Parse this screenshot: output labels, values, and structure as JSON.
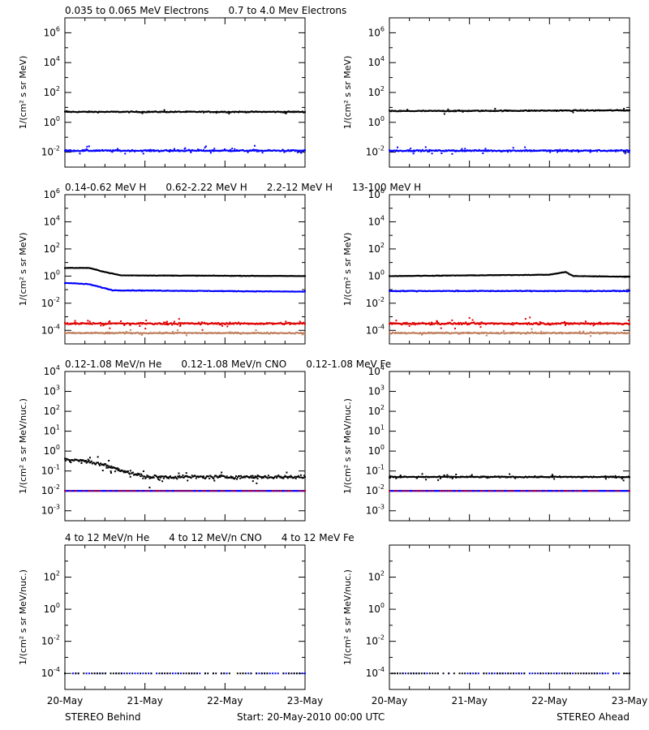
{
  "chart_data": [
    {
      "type": "scatter",
      "scale": "log",
      "ylim_exp": [
        -3,
        7
      ],
      "ytick_exp": [
        -2,
        0,
        2,
        4,
        6
      ],
      "ylabel": "1/(cm² s sr MeV)",
      "legend": [
        {
          "text": "0.035 to 0.065 MeV Electrons",
          "color": "#000000"
        },
        {
          "text": "0.7 to 4.0 Mev Electrons",
          "color": "#0000ff"
        }
      ],
      "panels": [
        {
          "name": "Behind",
          "series": [
            {
              "color": "#000000",
              "segments": [
                [
                  0,
                  0.7
                ],
                [
                  3,
                  0.7
                ]
              ],
              "noise": 0.06,
              "outliers": 8
            },
            {
              "color": "#0000ff",
              "segments": [
                [
                  0,
                  -1.9
                ],
                [
                  3,
                  -1.9
                ]
              ],
              "noise": 0.08,
              "outliers": 40
            }
          ]
        },
        {
          "name": "Ahead",
          "series": [
            {
              "color": "#000000",
              "segments": [
                [
                  0,
                  0.75
                ],
                [
                  3,
                  0.8
                ]
              ],
              "noise": 0.06,
              "outliers": 8
            },
            {
              "color": "#0000ff",
              "segments": [
                [
                  0,
                  -1.9
                ],
                [
                  3,
                  -1.9
                ]
              ],
              "noise": 0.08,
              "outliers": 40
            }
          ]
        }
      ]
    },
    {
      "type": "scatter",
      "scale": "log",
      "ylim_exp": [
        -5,
        6
      ],
      "ytick_exp": [
        -4,
        -2,
        0,
        2,
        4,
        6
      ],
      "ylabel": "1/(cm² s sr MeV)",
      "legend": [
        {
          "text": "0.14-0.62 MeV H",
          "color": "#000000"
        },
        {
          "text": "0.62-2.22 MeV H",
          "color": "#0000ff"
        },
        {
          "text": "2.2-12 MeV H",
          "color": "#c08060"
        },
        {
          "text": "13-100 MeV H",
          "color": "#e00000"
        }
      ],
      "panels": [
        {
          "name": "Behind",
          "series": [
            {
              "color": "#000000",
              "segments": [
                [
                  0,
                  0.6
                ],
                [
                  0.3,
                  0.6
                ],
                [
                  0.5,
                  0.3
                ],
                [
                  0.7,
                  0.05
                ],
                [
                  3,
                  0.0
                ]
              ],
              "noise": 0.03,
              "outliers": 0
            },
            {
              "color": "#0000ff",
              "segments": [
                [
                  0,
                  -0.5
                ],
                [
                  0.3,
                  -0.6
                ],
                [
                  0.6,
                  -1.05
                ],
                [
                  3,
                  -1.15
                ]
              ],
              "noise": 0.04,
              "outliers": 0
            },
            {
              "color": "#c08060",
              "segments": [
                [
                  0,
                  -4.2
                ],
                [
                  3,
                  -4.2
                ]
              ],
              "noise": 0.08,
              "outliers": 15
            },
            {
              "color": "#e00000",
              "segments": [
                [
                  0,
                  -3.5
                ],
                [
                  3,
                  -3.5
                ]
              ],
              "noise": 0.12,
              "outliers": 30
            }
          ]
        },
        {
          "name": "Ahead",
          "series": [
            {
              "color": "#000000",
              "segments": [
                [
                  0,
                  0.0
                ],
                [
                  1,
                  0.05
                ],
                [
                  2,
                  0.1
                ],
                [
                  2.2,
                  0.3
                ],
                [
                  2.3,
                  0.0
                ],
                [
                  3,
                  -0.05
                ]
              ],
              "noise": 0.03,
              "outliers": 0
            },
            {
              "color": "#0000ff",
              "segments": [
                [
                  0,
                  -1.1
                ],
                [
                  3,
                  -1.1
                ]
              ],
              "noise": 0.05,
              "outliers": 0
            },
            {
              "color": "#c08060",
              "segments": [
                [
                  0,
                  -4.2
                ],
                [
                  3,
                  -4.2
                ]
              ],
              "noise": 0.08,
              "outliers": 15
            },
            {
              "color": "#e00000",
              "segments": [
                [
                  0,
                  -3.5
                ],
                [
                  3,
                  -3.5
                ]
              ],
              "noise": 0.12,
              "outliers": 30
            }
          ]
        }
      ]
    },
    {
      "type": "scatter",
      "scale": "log",
      "ylim_exp": [
        -3.5,
        4
      ],
      "ytick_exp": [
        -3,
        -2,
        -1,
        0,
        1,
        2,
        3,
        4
      ],
      "ylabel": "1/(cm² s sr MeV/nuc.)",
      "legend": [
        {
          "text": "0.12-1.08 MeV/n He",
          "color": "#000000"
        },
        {
          "text": "0.12-1.08 MeV/n CNO",
          "color": "#0000ff"
        },
        {
          "text": "0.12-1.08 MeV Fe",
          "color": "#e00000"
        }
      ],
      "panels": [
        {
          "name": "Behind",
          "series": [
            {
              "color": "#000000",
              "segments": [
                [
                  0,
                  -0.4
                ],
                [
                  0.4,
                  -0.6
                ],
                [
                  0.7,
                  -0.95
                ],
                [
                  1.0,
                  -1.3
                ],
                [
                  3,
                  -1.3
                ]
              ],
              "noise": 0.15,
              "outliers": 30
            },
            {
              "color": "#0000ff",
              "segments": [
                [
                  0,
                  -2.0
                ],
                [
                  3,
                  -2.0
                ]
              ],
              "noise": 0.0,
              "outliers": 0
            },
            {
              "color": "#e00000",
              "segments": [
                [
                  0,
                  -2.0
                ],
                [
                  3,
                  -2.0
                ]
              ],
              "noise": 0.0,
              "outliers": 0,
              "sparse": true
            }
          ]
        },
        {
          "name": "Ahead",
          "series": [
            {
              "color": "#000000",
              "segments": [
                [
                  0,
                  -1.3
                ],
                [
                  3,
                  -1.3
                ]
              ],
              "noise": 0.05,
              "outliers": 30
            },
            {
              "color": "#0000ff",
              "segments": [
                [
                  0,
                  -2.0
                ],
                [
                  3,
                  -2.0
                ]
              ],
              "noise": 0.0,
              "outliers": 0
            },
            {
              "color": "#e00000",
              "segments": [
                [
                  0,
                  -2.0
                ],
                [
                  3,
                  -2.0
                ]
              ],
              "noise": 0.0,
              "outliers": 0,
              "sparse": true
            }
          ]
        }
      ]
    },
    {
      "type": "scatter",
      "scale": "log",
      "ylim_exp": [
        -5,
        4
      ],
      "ytick_exp": [
        -4,
        -2,
        0,
        2
      ],
      "ylabel": "1/(cm² s sr MeV/nuc.)",
      "legend": [
        {
          "text": "4 to 12 MeV/n He",
          "color": "#000000"
        },
        {
          "text": "4 to 12 MeV/n CNO",
          "color": "#0000ff"
        },
        {
          "text": "4 to 12 MeV Fe",
          "color": "#e00000"
        }
      ],
      "panels": [
        {
          "name": "Behind",
          "series": [
            {
              "color": "#0000ff",
              "segments": [
                [
                  0,
                  -4.0
                ],
                [
                  3,
                  -4.0
                ]
              ],
              "noise": 0.0,
              "outliers": 0,
              "sparse": true
            },
            {
              "color": "#000000",
              "segments": [
                [
                  0,
                  -4.0
                ],
                [
                  3,
                  -4.0
                ]
              ],
              "noise": 0.0,
              "outliers": 0,
              "sparse": true
            }
          ]
        },
        {
          "name": "Ahead",
          "series": [
            {
              "color": "#0000ff",
              "segments": [
                [
                  0,
                  -4.0
                ],
                [
                  3,
                  -4.0
                ]
              ],
              "noise": 0.0,
              "outliers": 0,
              "sparse": true
            },
            {
              "color": "#000000",
              "segments": [
                [
                  0,
                  -4.0
                ],
                [
                  3,
                  -4.0
                ]
              ],
              "noise": 0.0,
              "outliers": 0,
              "sparse": true
            }
          ]
        }
      ]
    }
  ],
  "x_axis": {
    "ticks": [
      "20-May",
      "21-May",
      "22-May",
      "23-May"
    ],
    "tick_values": [
      0,
      1,
      2,
      3
    ],
    "xlim": [
      0,
      3
    ]
  },
  "footer": {
    "left": "STEREO Behind",
    "center": "Start: 20-May-2010 00:00 UTC",
    "right": "STEREO Ahead"
  }
}
